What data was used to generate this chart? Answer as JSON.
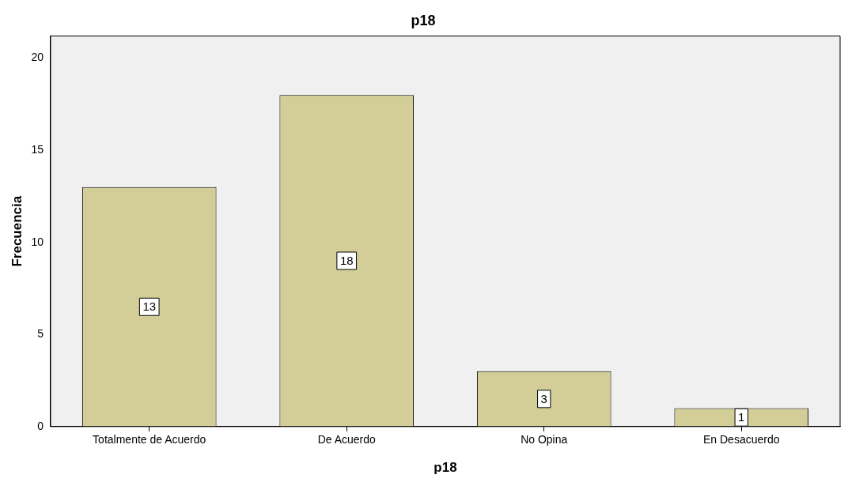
{
  "chart_data": {
    "type": "bar",
    "title": "p18",
    "xlabel": "p18",
    "ylabel": "Frecuencia",
    "categories": [
      "Totalmente de Acuerdo",
      "De Acuerdo",
      "No Opina",
      "En Desacuerdo"
    ],
    "values": [
      13,
      18,
      3,
      1
    ],
    "color": "#d3ce98",
    "ylim": [
      0,
      21.2
    ],
    "yticks": [
      0,
      5,
      10,
      15,
      20
    ],
    "grid": false,
    "legend": false,
    "data_labels": true
  }
}
